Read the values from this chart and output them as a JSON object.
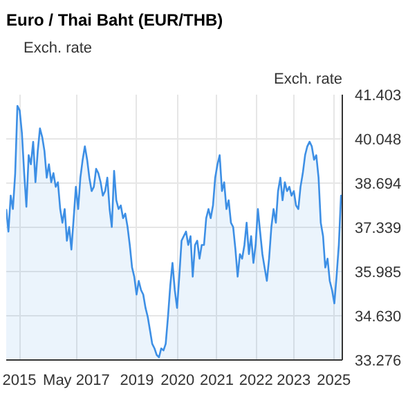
{
  "chart_data": {
    "type": "area",
    "title": "Euro / Thai Baht (EUR/THB)",
    "ylabel": "Exch. rate",
    "xlim": [
      "2015-04-24",
      "2025-05-08"
    ],
    "xticks": [
      {
        "value": "2015-09-15",
        "label": "2015"
      },
      {
        "value": "2017-05-28",
        "label": "May 2017"
      },
      {
        "value": "2019-03-20",
        "label": "2019"
      },
      {
        "value": "2020-06-05",
        "label": "2020"
      },
      {
        "value": "2021-08-07",
        "label": "2021"
      },
      {
        "value": "2022-10-10",
        "label": "2022"
      },
      {
        "value": "2023-11-25",
        "label": "2023"
      },
      {
        "value": "2025-02-05",
        "label": "2025"
      }
    ],
    "ylim": [
      33.276,
      41.403
    ],
    "yticks": [
      33.276,
      {
        "value": 34.63,
        "label": "34.630"
      },
      35.985,
      37.339,
      38.694,
      40.048,
      41.403
    ],
    "grid": true,
    "legend": "top left",
    "series": [
      {
        "name": "Exch. rate",
        "color": "#3d8fe5",
        "x": [
          "2015-04-24",
          "2015-05-18",
          "2015-06-12",
          "2015-07-06",
          "2015-07-31",
          "2015-08-24",
          "2015-09-18",
          "2015-10-12",
          "2015-11-06",
          "2015-11-30",
          "2015-12-25",
          "2016-01-18",
          "2016-02-12",
          "2016-03-08",
          "2016-04-02",
          "2016-04-26",
          "2016-05-21",
          "2016-06-14",
          "2016-07-09",
          "2016-08-02",
          "2016-08-27",
          "2016-09-20",
          "2016-10-15",
          "2016-11-08",
          "2016-12-03",
          "2016-12-27",
          "2017-01-21",
          "2017-02-14",
          "2017-03-11",
          "2017-04-04",
          "2017-04-29",
          "2017-05-23",
          "2017-06-17",
          "2017-07-11",
          "2017-08-05",
          "2017-08-29",
          "2017-09-23",
          "2017-10-17",
          "2017-11-11",
          "2017-12-05",
          "2017-12-30",
          "2018-01-23",
          "2018-02-17",
          "2018-03-13",
          "2018-04-07",
          "2018-05-01",
          "2018-05-26",
          "2018-06-19",
          "2018-07-14",
          "2018-08-07",
          "2018-09-01",
          "2018-09-25",
          "2018-10-20",
          "2018-11-13",
          "2018-12-08",
          "2019-01-01",
          "2019-01-26",
          "2019-02-19",
          "2019-03-16",
          "2019-04-09",
          "2019-05-04",
          "2019-05-28",
          "2019-06-22",
          "2019-07-16",
          "2019-08-10",
          "2019-09-03",
          "2019-09-28",
          "2019-10-22",
          "2019-11-16",
          "2019-12-10",
          "2020-01-04",
          "2020-01-28",
          "2020-02-22",
          "2020-03-18",
          "2020-04-11",
          "2020-05-06",
          "2020-05-31",
          "2020-06-24",
          "2020-07-19",
          "2020-08-12",
          "2020-09-06",
          "2020-09-30",
          "2020-10-25",
          "2020-11-18",
          "2020-12-13",
          "2021-01-06",
          "2021-01-31",
          "2021-02-24",
          "2021-03-21",
          "2021-04-14",
          "2021-05-09",
          "2021-06-02",
          "2021-06-27",
          "2021-07-21",
          "2021-08-15",
          "2021-09-08",
          "2021-10-03",
          "2021-10-27",
          "2021-11-21",
          "2021-12-15",
          "2022-01-09",
          "2022-02-02",
          "2022-02-27",
          "2022-03-23",
          "2022-04-17",
          "2022-05-11",
          "2022-06-05",
          "2022-06-29",
          "2022-07-24",
          "2022-08-17",
          "2022-09-11",
          "2022-10-05",
          "2022-10-30",
          "2022-11-23",
          "2022-12-18",
          "2023-01-11",
          "2023-02-05",
          "2023-03-01",
          "2023-03-26",
          "2023-04-19",
          "2023-05-14",
          "2023-06-07",
          "2023-07-02",
          "2023-07-26",
          "2023-08-20",
          "2023-09-13",
          "2023-10-08",
          "2023-11-01",
          "2023-11-26",
          "2023-12-20",
          "2024-01-14",
          "2024-02-07",
          "2024-03-03",
          "2024-03-28",
          "2024-04-21",
          "2024-05-16",
          "2024-06-09",
          "2024-07-04",
          "2024-07-28",
          "2024-08-22",
          "2024-09-15",
          "2024-10-10",
          "2024-11-03",
          "2024-11-28",
          "2024-12-22",
          "2025-01-16",
          "2025-02-10",
          "2025-03-06",
          "2025-03-31",
          "2025-04-24",
          "2025-05-08"
        ],
        "values": [
          37.9,
          37.21,
          38.31,
          37.9,
          39.0,
          41.06,
          40.92,
          40.23,
          39.0,
          37.97,
          39.55,
          39.27,
          39.96,
          38.72,
          39.68,
          40.37,
          40.1,
          39.68,
          38.86,
          39.27,
          38.72,
          39.0,
          38.58,
          38.72,
          37.9,
          37.48,
          37.9,
          36.93,
          37.35,
          36.66,
          37.62,
          38.58,
          37.9,
          38.86,
          39.41,
          39.82,
          39.41,
          38.86,
          38.45,
          38.58,
          39.13,
          39.0,
          38.72,
          38.31,
          38.45,
          38.86,
          37.9,
          37.35,
          39.07,
          38.17,
          37.9,
          38.01,
          37.62,
          37.76,
          37.35,
          36.8,
          36.11,
          35.83,
          35.28,
          35.7,
          35.42,
          35.28,
          34.87,
          34.6,
          34.18,
          33.77,
          33.63,
          33.43,
          33.36,
          33.63,
          33.57,
          33.77,
          34.6,
          35.56,
          36.25,
          35.42,
          34.87,
          35.83,
          36.93,
          37.07,
          37.21,
          36.8,
          37.07,
          35.83,
          36.8,
          36.93,
          36.38,
          36.8,
          36.8,
          37.62,
          37.9,
          37.62,
          38.01,
          38.86,
          39.27,
          39.55,
          38.45,
          38.72,
          37.9,
          38.17,
          37.48,
          37.35,
          36.66,
          35.83,
          36.52,
          36.38,
          36.8,
          37.48,
          36.52,
          37.07,
          36.25,
          36.8,
          37.9,
          37.21,
          36.52,
          36.11,
          35.7,
          36.38,
          37.35,
          37.9,
          37.48,
          38.45,
          38.86,
          38.17,
          38.72,
          38.45,
          38.58,
          38.31,
          38.45,
          38.01,
          37.9,
          38.58,
          39.0,
          39.55,
          39.82,
          39.96,
          39.82,
          39.41,
          39.55,
          38.86,
          37.48,
          37.07,
          36.11,
          36.38,
          35.7,
          35.42,
          35.01,
          35.83,
          36.8,
          38.31,
          38.17
        ]
      }
    ]
  }
}
